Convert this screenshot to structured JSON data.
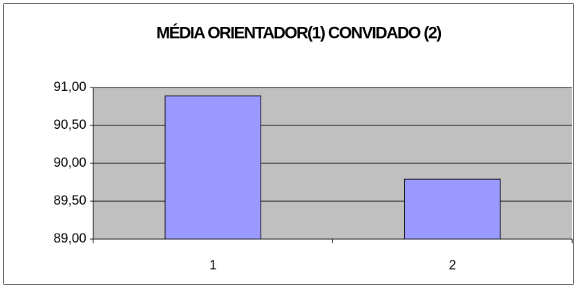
{
  "chart_data": {
    "type": "bar",
    "title": "MÉDIA ORIENTADOR(1) CONVIDADO (2)",
    "categories": [
      "1",
      "2"
    ],
    "values": [
      90.89,
      89.79
    ],
    "color": "#9999ff",
    "ylim": [
      89,
      91
    ],
    "yticks": [
      {
        "value": 89,
        "label": "89,00"
      },
      {
        "value": 89.5,
        "label": "89,50"
      },
      {
        "value": 90,
        "label": "90,00"
      },
      {
        "value": 90.5,
        "label": "90,50"
      },
      {
        "value": 91,
        "label": "91,00"
      }
    ],
    "grid": true
  }
}
